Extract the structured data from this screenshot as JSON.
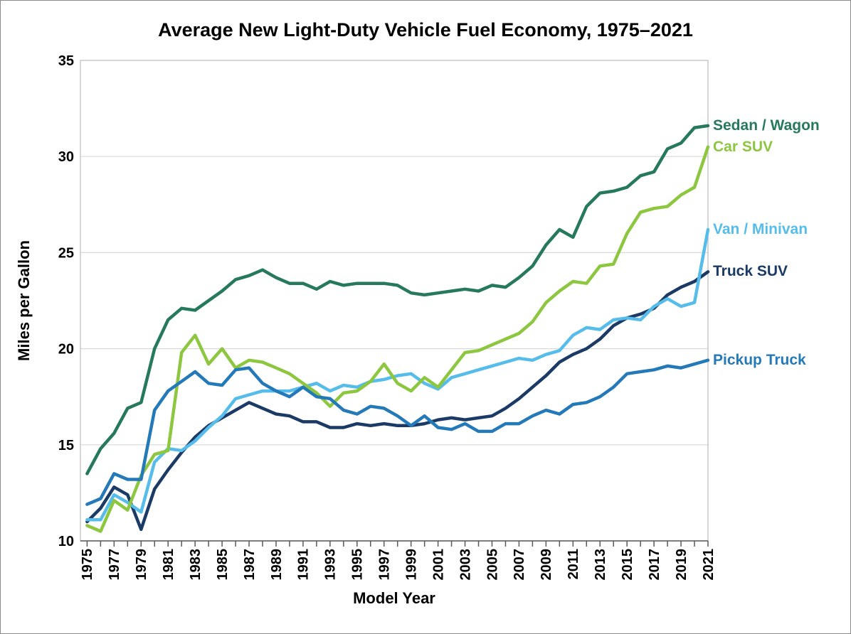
{
  "title": "Average New Light-Duty Vehicle Fuel Economy, 1975–2021",
  "chart_data": {
    "type": "line",
    "title": "Average New Light-Duty Vehicle Fuel Economy, 1975–2021",
    "xlabel": "Model Year",
    "ylabel": "Miles per Gallon",
    "x_start": 1975,
    "x_end": 2021,
    "x_tick_labels": [
      "1975",
      "1977",
      "1979",
      "1981",
      "1983",
      "1985",
      "1987",
      "1989",
      "1991",
      "1993",
      "1995",
      "1997",
      "1999",
      "2001",
      "2003",
      "2005",
      "2007",
      "2009",
      "2011",
      "2013",
      "2015",
      "2017",
      "2019",
      "2021"
    ],
    "ylim": [
      10,
      35
    ],
    "yticks": [
      10,
      15,
      20,
      25,
      30,
      35
    ],
    "grid": "horizontal",
    "gridline_color": "#d9d9d9",
    "frame_color": "#bfbfbf",
    "axis_color": "#595959",
    "legend_position": "right-of-line-ends",
    "series": [
      {
        "name": "Sedan / Wagon",
        "color": "#26795c",
        "values": [
          13.5,
          14.8,
          15.6,
          16.9,
          17.2,
          20.0,
          21.5,
          22.1,
          22.0,
          22.5,
          23.0,
          23.6,
          23.8,
          24.1,
          23.7,
          23.4,
          23.4,
          23.1,
          23.5,
          23.3,
          23.4,
          23.4,
          23.4,
          23.3,
          22.9,
          22.8,
          22.9,
          23.0,
          23.1,
          23.0,
          23.3,
          23.2,
          23.7,
          24.3,
          25.4,
          26.2,
          25.8,
          27.4,
          28.1,
          28.2,
          28.4,
          29.0,
          29.2,
          30.4,
          30.7,
          31.5,
          31.6
        ]
      },
      {
        "name": "Car SUV",
        "color": "#8dc63f",
        "values": [
          10.8,
          10.5,
          12.1,
          11.6,
          13.4,
          14.5,
          14.7,
          19.8,
          20.7,
          19.2,
          20.0,
          19.0,
          19.4,
          19.3,
          19.0,
          18.7,
          18.2,
          17.7,
          17.0,
          17.7,
          17.8,
          18.3,
          19.2,
          18.2,
          17.8,
          18.5,
          18.0,
          18.9,
          19.8,
          19.9,
          20.2,
          20.5,
          20.8,
          21.4,
          22.4,
          23.0,
          23.5,
          23.4,
          24.3,
          24.4,
          26.0,
          27.1,
          27.3,
          27.4,
          28.0,
          28.4,
          30.5
        ]
      },
      {
        "name": "Van / Minivan",
        "color": "#56bdea",
        "values": [
          11.1,
          11.1,
          12.4,
          12.0,
          11.5,
          14.1,
          14.8,
          14.7,
          15.2,
          15.9,
          16.5,
          17.4,
          17.6,
          17.8,
          17.8,
          17.8,
          18.0,
          18.2,
          17.8,
          18.1,
          18.0,
          18.3,
          18.4,
          18.6,
          18.7,
          18.2,
          17.9,
          18.5,
          18.7,
          18.9,
          19.1,
          19.3,
          19.5,
          19.4,
          19.7,
          19.9,
          20.7,
          21.1,
          21.0,
          21.5,
          21.6,
          21.5,
          22.2,
          22.6,
          22.2,
          22.4,
          26.2
        ]
      },
      {
        "name": "Truck SUV",
        "color": "#1b3a66",
        "values": [
          11.0,
          11.7,
          12.8,
          12.4,
          10.6,
          12.7,
          13.7,
          14.6,
          15.4,
          16.0,
          16.4,
          16.8,
          17.2,
          16.9,
          16.6,
          16.5,
          16.2,
          16.2,
          15.9,
          15.9,
          16.1,
          16.0,
          16.1,
          16.0,
          16.0,
          16.1,
          16.3,
          16.4,
          16.3,
          16.4,
          16.5,
          16.9,
          17.4,
          18.0,
          18.6,
          19.3,
          19.7,
          20.0,
          20.5,
          21.2,
          21.6,
          21.8,
          22.1,
          22.8,
          23.2,
          23.5,
          24.0
        ]
      },
      {
        "name": "Pickup Truck",
        "color": "#2479b8",
        "values": [
          11.9,
          12.2,
          13.5,
          13.2,
          13.2,
          16.8,
          17.8,
          18.3,
          18.8,
          18.2,
          18.1,
          18.9,
          19.0,
          18.2,
          17.8,
          17.5,
          18.0,
          17.5,
          17.4,
          16.8,
          16.6,
          17.0,
          16.9,
          16.5,
          16.0,
          16.5,
          15.9,
          15.8,
          16.1,
          15.7,
          15.7,
          16.1,
          16.1,
          16.5,
          16.8,
          16.6,
          17.1,
          17.2,
          17.5,
          18.0,
          18.7,
          18.8,
          18.9,
          19.1,
          19.0,
          19.2,
          19.4
        ]
      }
    ]
  }
}
